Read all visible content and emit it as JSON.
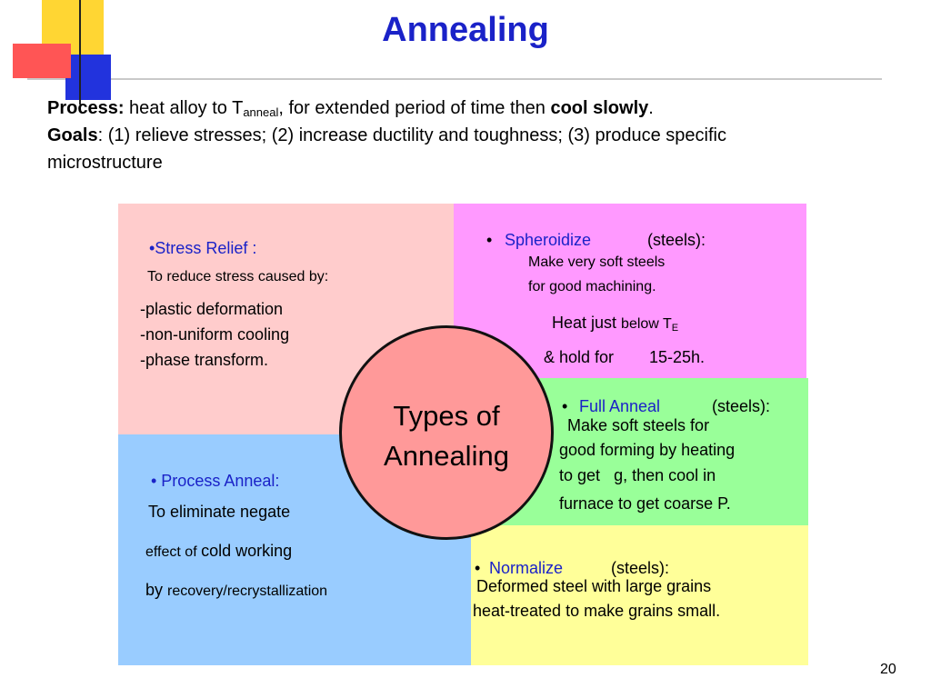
{
  "slide": {
    "title": "Annealing",
    "page_number": "20"
  },
  "intro": {
    "process_label": "Process:",
    "process_text_a": " heat alloy to T",
    "process_sub": "anneal",
    "process_text_b": ", for extended period of time then ",
    "process_bold": "cool slowly",
    "process_end": ".",
    "goals_label": "Goals",
    "goals_text": ": (1) relieve stresses; (2) increase ductility and toughness; (3) produce specific",
    "goals_text2": "microstructure"
  },
  "center": {
    "label": "Types of\nAnnealing"
  },
  "stress_relief": {
    "heading": "•Stress Relief :",
    "subtitle": "To reduce stress caused by:",
    "items": [
      "-plastic deformation",
      "-non-uniform cooling",
      "-phase transform."
    ]
  },
  "spheroidize": {
    "bullet": "•",
    "heading": "Spheroidize",
    "suffix": "(steels):",
    "line1": "Make very soft steels",
    "line2": "for good machining.",
    "heat_a": "Heat just ",
    "heat_b": "below T",
    "heat_sub": "E",
    "hold_a": "& hold for",
    "hold_b": "15-25h."
  },
  "full_anneal": {
    "bullet": "•",
    "heading": "Full Anneal",
    "suffix": "(steels):",
    "line1": "Make soft steels for",
    "line2": "good forming by heating",
    "line3a": "to get",
    "line3b": "g",
    "line3c": ", then cool in",
    "line4": "furnace to get coarse P."
  },
  "process_anneal": {
    "heading": "• Process Anneal:",
    "line1": "To eliminate negate",
    "line2a": "effect of ",
    "line2b": "cold working",
    "line3a": "by ",
    "line3b": "recovery/recrystallization"
  },
  "normalize": {
    "heading_bullet": "•",
    "heading": "Normalize",
    "suffix": "(steels):",
    "line1": "Deformed steel with large grains",
    "line2": "heat-treated to make grains small."
  },
  "colors": {
    "title_blue": "#1a22c8",
    "stress_relief_bg": "#ffcccc",
    "spheroidize_bg": "#ff99ff",
    "full_anneal_bg": "#99ff99",
    "process_anneal_bg": "#99ccff",
    "normalize_bg": "#ffff99",
    "circle_bg": "#ff9999"
  }
}
